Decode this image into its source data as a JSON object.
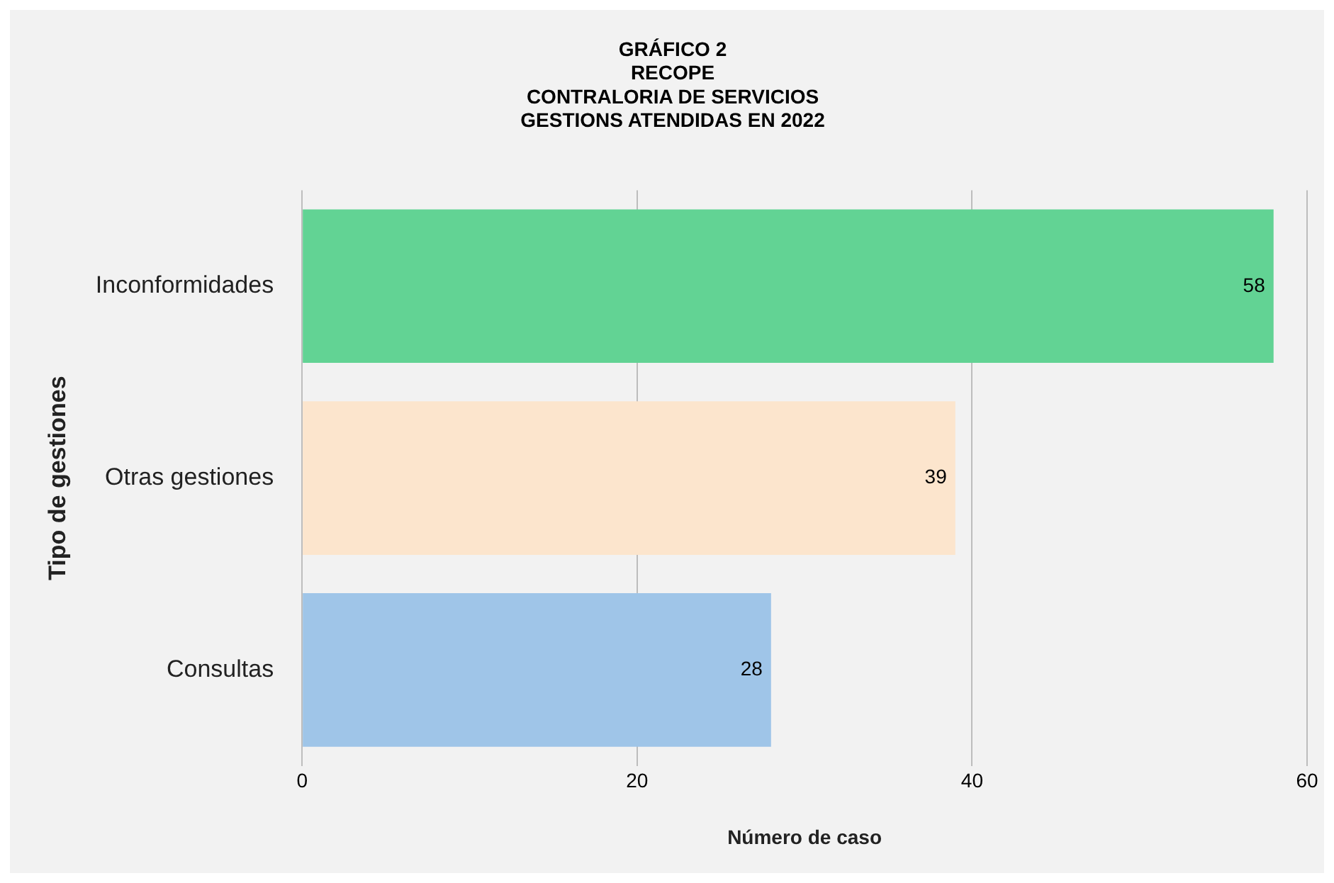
{
  "chart_data": {
    "type": "bar",
    "orientation": "horizontal",
    "title": "GRÁFICO 2\nRECOPE\nCONTRALORIA DE SERVICIOS\nGESTIONS ATENDIDAS EN 2022",
    "xlabel": "Número de caso",
    "ylabel": "Tipo de gestiones",
    "categories": [
      "Inconformidades",
      "Otras gestiones",
      "Consultas"
    ],
    "values": [
      58,
      39,
      28
    ],
    "colors": [
      "#62d394",
      "#fce5cd",
      "#9fc5e8"
    ],
    "xlim": [
      0,
      60
    ],
    "xticks": [
      0,
      20,
      40,
      60
    ],
    "grid": "x",
    "data_labels": true
  }
}
